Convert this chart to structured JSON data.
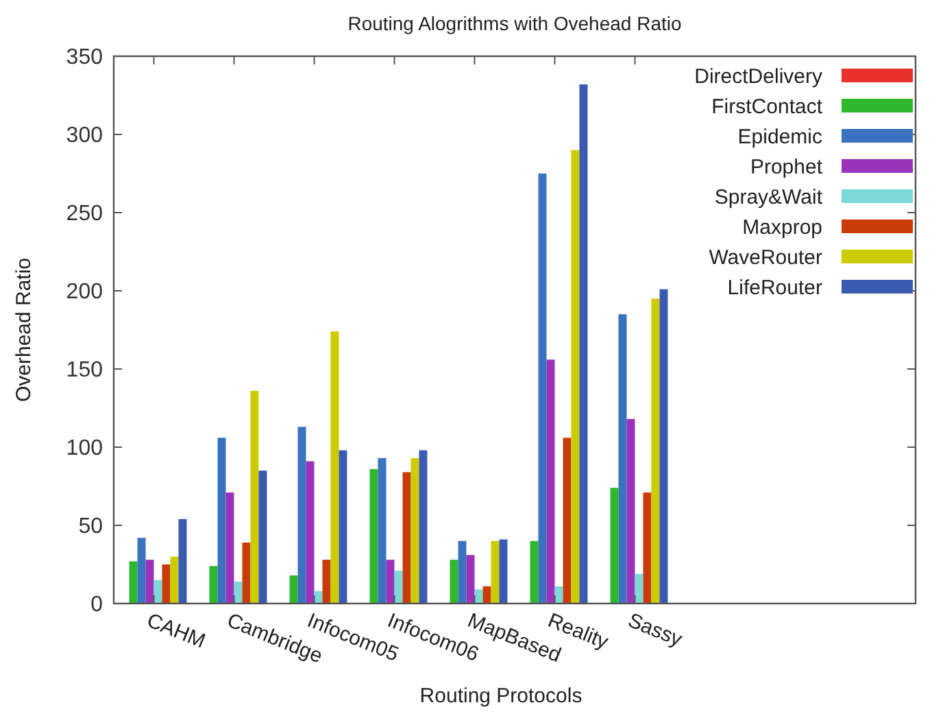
{
  "chart_data": {
    "type": "bar",
    "title": "Routing Alogrithms with Ovehead Ratio",
    "xlabel": "Routing Protocols",
    "ylabel": "Overhead Ratio",
    "categories": [
      "CAHM",
      "Cambridge",
      "Infocom05",
      "Infocom06",
      "MapBased",
      "Reality",
      "Sassy",
      null,
      null,
      null
    ],
    "series": [
      {
        "name": "DirectDelivery",
        "color": "#e8312a",
        "values": [
          null,
          null,
          null,
          null,
          null,
          null,
          null,
          null,
          null,
          null
        ]
      },
      {
        "name": "FirstContact",
        "color": "#2db82d",
        "values": [
          27,
          24,
          18,
          86,
          28,
          40,
          74,
          null,
          null,
          null
        ]
      },
      {
        "name": "Epidemic",
        "color": "#3a72c0",
        "values": [
          42,
          106,
          113,
          93,
          40,
          275,
          185,
          null,
          null,
          null
        ]
      },
      {
        "name": "Prophet",
        "color": "#9933bb",
        "values": [
          28,
          71,
          91,
          28,
          31,
          156,
          118,
          null,
          null,
          null
        ]
      },
      {
        "name": "Spray&Wait",
        "color": "#7dd8d8",
        "values": [
          15,
          14,
          8,
          21,
          9,
          11,
          19,
          null,
          null,
          null
        ]
      },
      {
        "name": "Maxprop",
        "color": "#c83c0a",
        "values": [
          25,
          39,
          28,
          84,
          11,
          106,
          71,
          null,
          null,
          null
        ]
      },
      {
        "name": "WaveRouter",
        "color": "#cccc00",
        "values": [
          30,
          136,
          174,
          93,
          40,
          290,
          195,
          null,
          null,
          null
        ]
      },
      {
        "name": "LifeRouter",
        "color": "#3a5bb0",
        "values": [
          54,
          85,
          98,
          98,
          41,
          332,
          201,
          null,
          null,
          null
        ]
      }
    ],
    "ylim": [
      0,
      350
    ],
    "yticks": [
      0,
      50,
      100,
      150,
      200,
      250,
      300,
      350
    ],
    "grid": false,
    "legend": "top right"
  }
}
